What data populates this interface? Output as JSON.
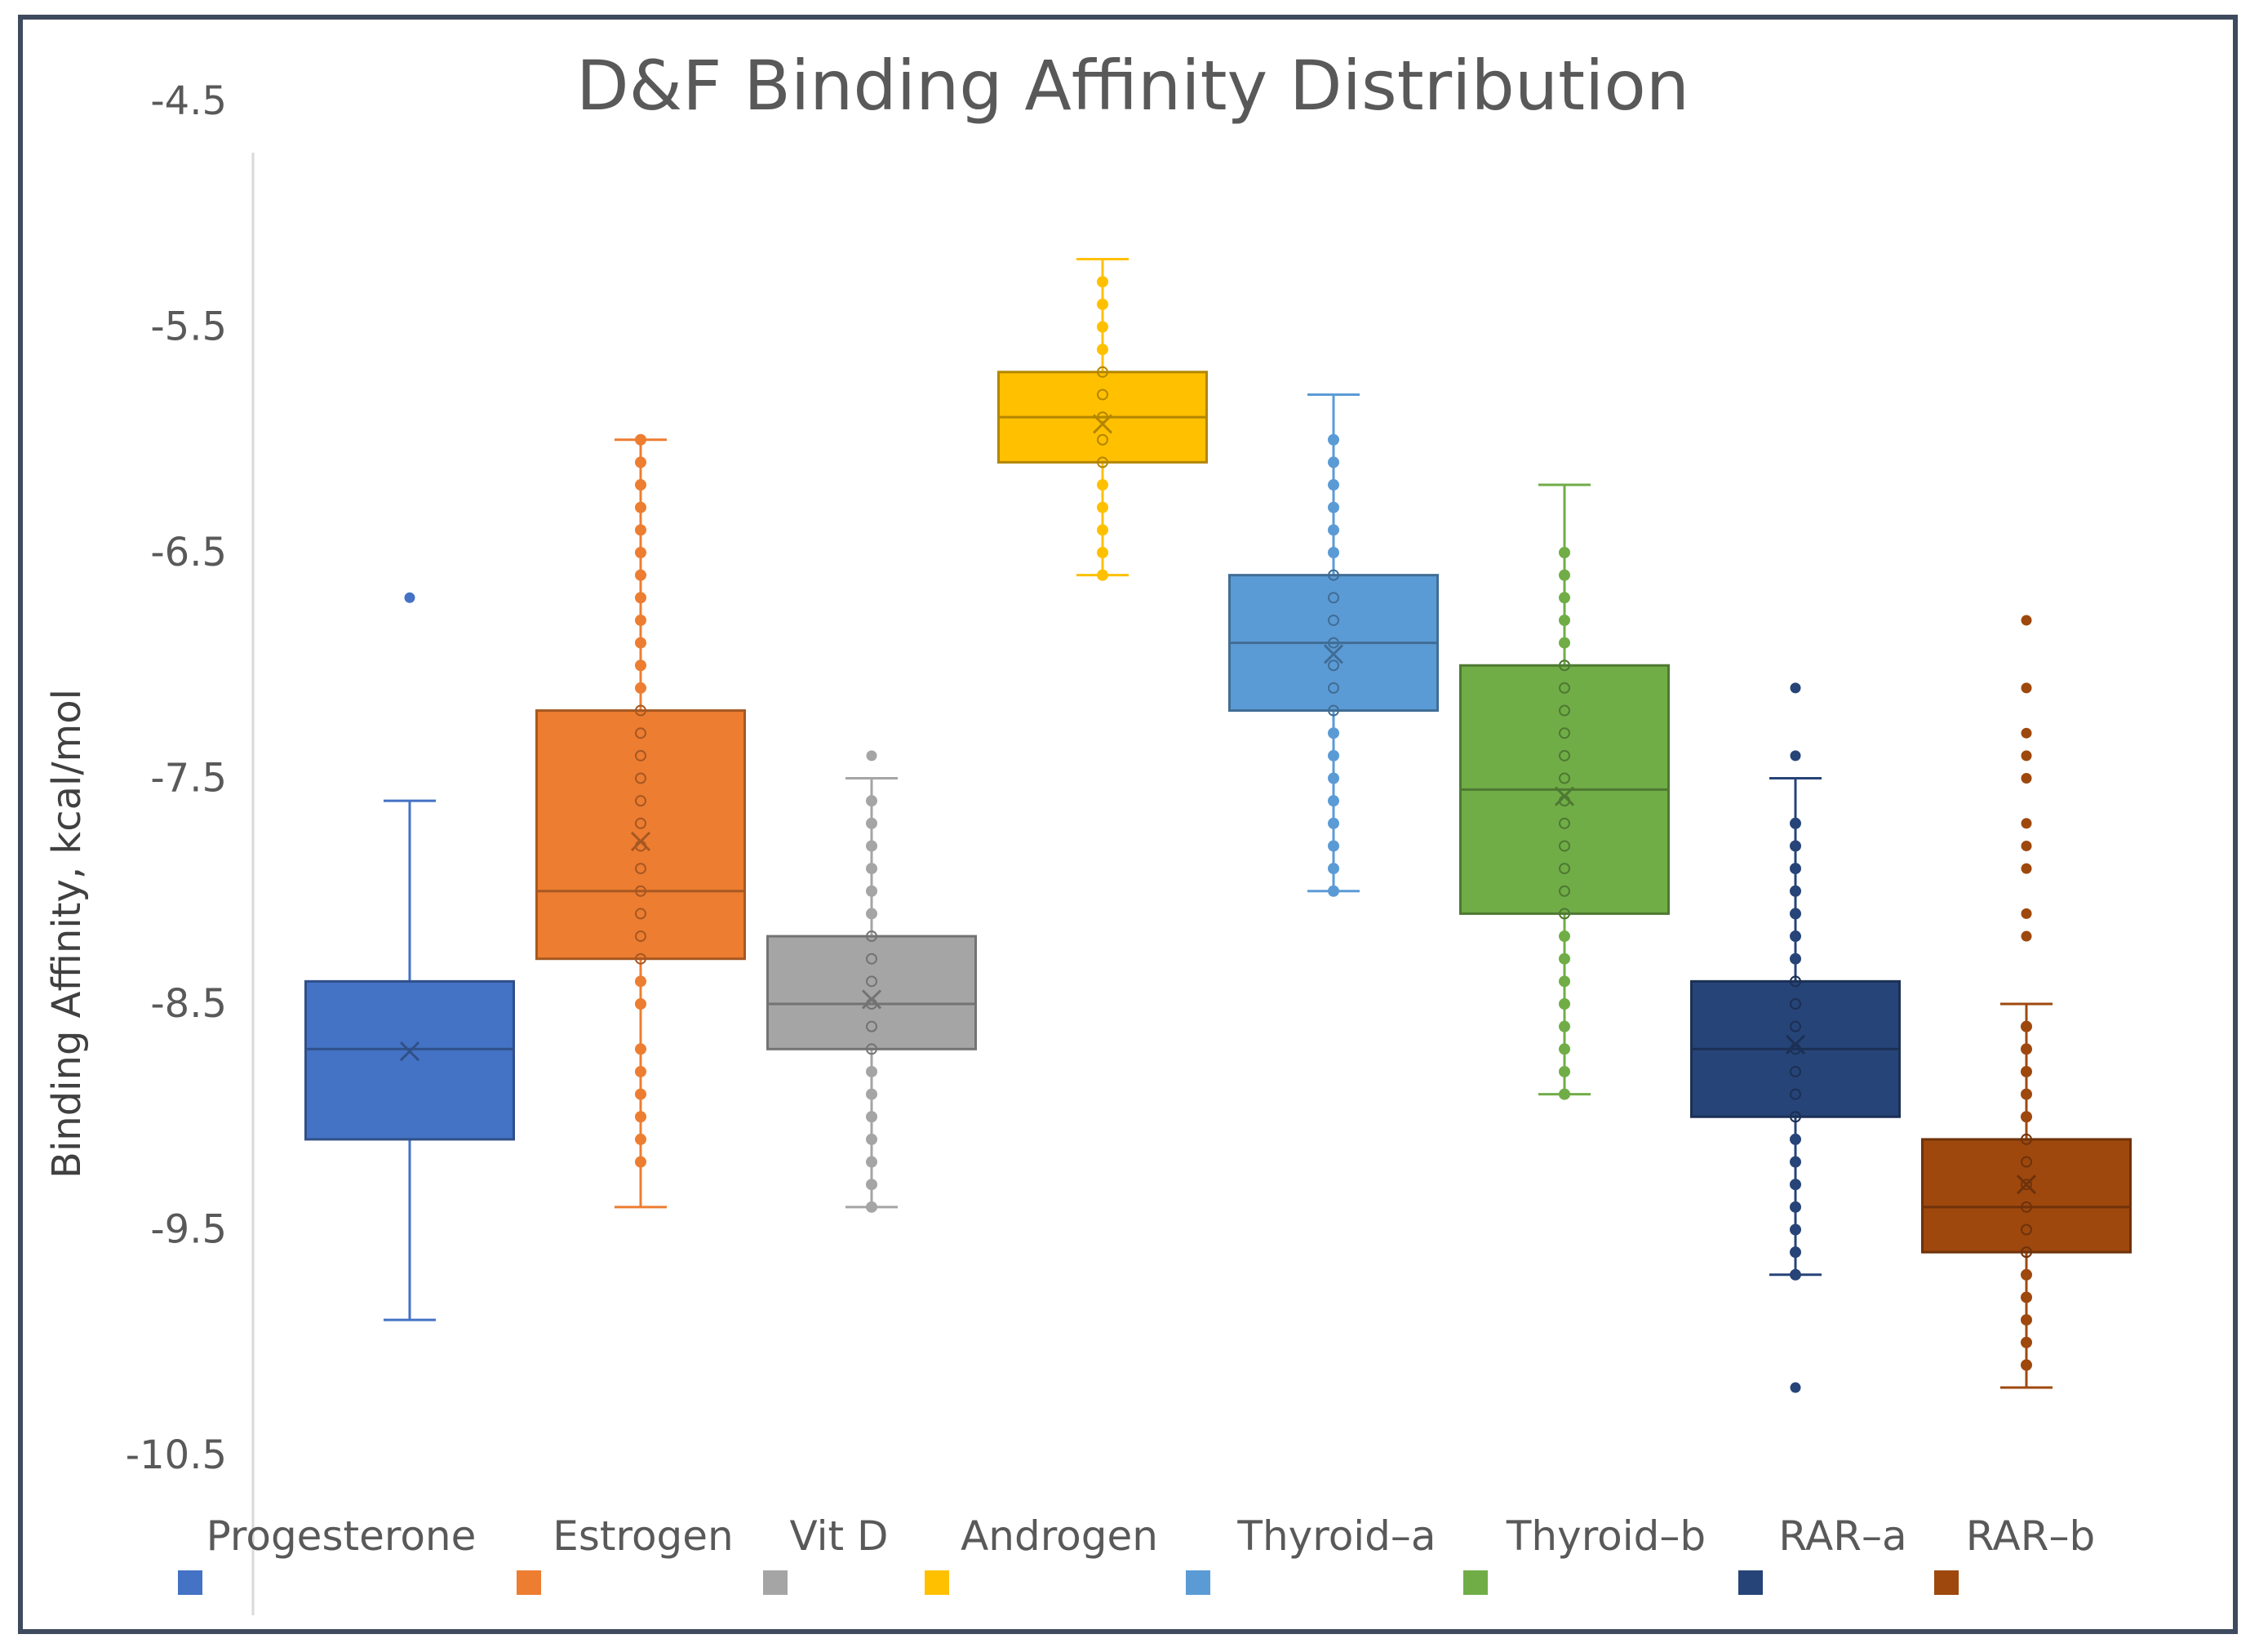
{
  "chart_data": {
    "type": "box",
    "title": "D&F Binding Affinity Distribution",
    "xlabel": "",
    "ylabel": "Binding Affinity, kcal/mol",
    "yticks": [
      "-4.5",
      "-5.5",
      "-6.5",
      "-7.5",
      "-8.5",
      "-9.5",
      "-10.5"
    ],
    "ylim": [
      -10.5,
      -4.5
    ],
    "legend_position": "bottom",
    "series": [
      {
        "name": "Progesterone",
        "color": "#4472C4",
        "whisker_low": -9.9,
        "q1": -9.1,
        "median": -8.7,
        "q3": -8.4,
        "whisker_high": -7.6,
        "mean": -8.71,
        "show_points": false,
        "points": [],
        "outliers": [
          -6.7
        ]
      },
      {
        "name": "Estrogen",
        "color": "#ED7D31",
        "whisker_low": -9.4,
        "q1": -8.3,
        "median": -8.0,
        "q3": -7.2,
        "whisker_high": -6.0,
        "mean": -7.78,
        "show_points": true,
        "points": [
          -6.0,
          -6.1,
          -6.2,
          -6.3,
          -6.4,
          -6.5,
          -6.6,
          -6.7,
          -6.8,
          -6.9,
          -7.0,
          -7.1,
          -7.2,
          -7.3,
          -7.4,
          -7.5,
          -7.6,
          -7.7,
          -7.8,
          -7.9,
          -8.0,
          -8.1,
          -8.2,
          -8.3,
          -8.4,
          -8.5,
          -8.7,
          -8.8,
          -8.9,
          -9.0,
          -9.1,
          -9.2
        ],
        "outliers": []
      },
      {
        "name": "Vit D",
        "color": "#A5A5A5",
        "whisker_low": -9.4,
        "q1": -8.7,
        "median": -8.5,
        "q3": -8.2,
        "whisker_high": -7.5,
        "mean": -8.48,
        "show_points": true,
        "points": [
          -7.6,
          -7.7,
          -7.8,
          -7.9,
          -8.0,
          -8.1,
          -8.2,
          -8.3,
          -8.4,
          -8.5,
          -8.6,
          -8.7,
          -8.8,
          -8.9,
          -9.0,
          -9.1,
          -9.2,
          -9.3,
          -9.4
        ],
        "outliers": [
          -7.4
        ]
      },
      {
        "name": "Androgen",
        "color": "#FFC000",
        "whisker_low": -6.6,
        "q1": -6.1,
        "median": -5.9,
        "q3": -5.7,
        "whisker_high": -5.2,
        "mean": -5.93,
        "show_points": true,
        "points": [
          -5.3,
          -5.4,
          -5.5,
          -5.6,
          -5.7,
          -5.8,
          -5.9,
          -6.0,
          -6.1,
          -6.2,
          -6.3,
          -6.4,
          -6.5,
          -6.6
        ],
        "outliers": []
      },
      {
        "name": "Thyroid–a",
        "color": "#5B9BD5",
        "whisker_low": -8.0,
        "q1": -7.2,
        "median": -6.9,
        "q3": -6.6,
        "whisker_high": -5.8,
        "mean": -6.95,
        "show_points": true,
        "points": [
          -6.0,
          -6.1,
          -6.2,
          -6.3,
          -6.4,
          -6.5,
          -6.6,
          -6.7,
          -6.8,
          -6.9,
          -7.0,
          -7.1,
          -7.2,
          -7.3,
          -7.4,
          -7.5,
          -7.6,
          -7.7,
          -7.8,
          -7.9,
          -8.0
        ],
        "outliers": []
      },
      {
        "name": "Thyroid–b",
        "color": "#70AD47",
        "whisker_low": -8.9,
        "q1": -8.1,
        "median": -7.55,
        "q3": -7.0,
        "whisker_high": -6.2,
        "mean": -7.58,
        "show_points": true,
        "points": [
          -6.5,
          -6.6,
          -6.7,
          -6.8,
          -6.9,
          -7.0,
          -7.1,
          -7.2,
          -7.3,
          -7.4,
          -7.5,
          -7.6,
          -7.7,
          -7.8,
          -7.9,
          -8.0,
          -8.1,
          -8.2,
          -8.3,
          -8.4,
          -8.5,
          -8.6,
          -8.7,
          -8.8,
          -8.9
        ],
        "outliers": []
      },
      {
        "name": "RAR–a",
        "color": "#264478",
        "whisker_low": -9.7,
        "q1": -9.0,
        "median": -8.7,
        "q3": -8.4,
        "whisker_high": -7.5,
        "mean": -8.68,
        "show_points": true,
        "points": [
          -7.7,
          -7.8,
          -7.9,
          -8.0,
          -8.1,
          -8.2,
          -8.3,
          -8.4,
          -8.5,
          -8.6,
          -8.7,
          -8.8,
          -8.9,
          -9.0,
          -9.1,
          -9.2,
          -9.3,
          -9.4,
          -9.5,
          -9.6,
          -9.7
        ],
        "outliers": [
          -7.1,
          -7.4,
          -10.2
        ]
      },
      {
        "name": "RAR–b",
        "color": "#9E480E",
        "whisker_low": -10.2,
        "q1": -9.6,
        "median": -9.4,
        "q3": -9.1,
        "whisker_high": -8.5,
        "mean": -9.3,
        "show_points": true,
        "points": [
          -8.6,
          -8.7,
          -8.8,
          -8.9,
          -9.0,
          -9.1,
          -9.2,
          -9.3,
          -9.4,
          -9.5,
          -9.6,
          -9.7,
          -9.8,
          -9.9,
          -10.0,
          -10.1
        ],
        "outliers": [
          -6.8,
          -7.1,
          -7.3,
          -7.4,
          -7.5,
          -7.7,
          -7.8,
          -7.9,
          -8.1,
          -8.2
        ]
      }
    ]
  }
}
